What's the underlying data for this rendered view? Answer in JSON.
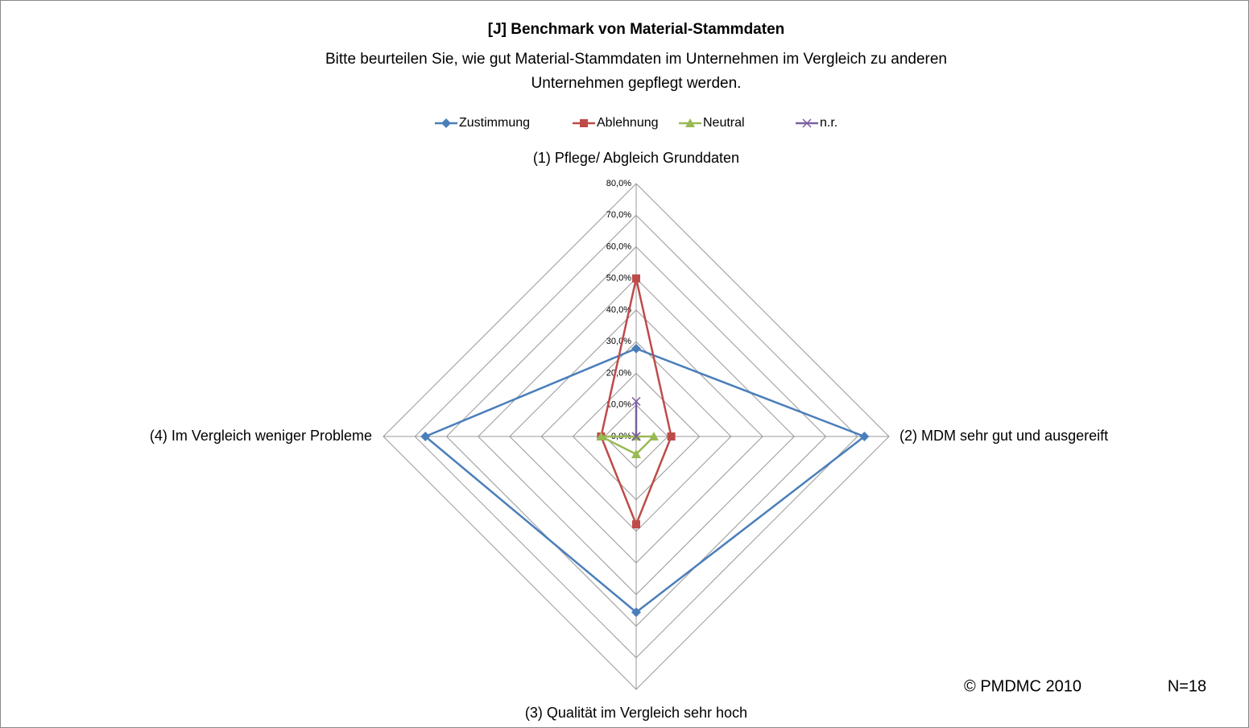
{
  "chart_data": {
    "type": "radar",
    "title": "[J] Benchmark von Material-Stammdaten",
    "subtitle": [
      "Bitte beurteilen Sie, wie gut Material-Stammdaten im Unternehmen im Vergleich zu anderen",
      "Unternehmen gepflegt werden."
    ],
    "categories": [
      "(1)  Pflege/ Abgleich Grunddaten",
      "(2) MDM sehr gut und ausgereift",
      "(3) Qualität im Vergleich sehr hoch",
      "(4) Im Vergleich weniger Probleme"
    ],
    "series": [
      {
        "name": "Zustimmung",
        "color": "#4a7ebb",
        "marker": "diamond",
        "values": [
          27.8,
          72.2,
          55.6,
          66.7
        ]
      },
      {
        "name": "Ablehnung",
        "color": "#be4b48",
        "marker": "square",
        "values": [
          50.0,
          11.1,
          27.8,
          11.1
        ]
      },
      {
        "name": "Neutral",
        "color": "#98b954",
        "marker": "triangle",
        "values": [
          0,
          5.6,
          5.6,
          11.1
        ]
      },
      {
        "name": "n.r.",
        "color": "#7d5fa0",
        "marker": "x",
        "values": [
          11.1,
          0,
          0,
          0
        ]
      }
    ],
    "ylim": [
      0,
      80
    ],
    "yticks": [
      {
        "value": 0,
        "label": "0,0%"
      },
      {
        "value": 10,
        "label": "10,0%"
      },
      {
        "value": 20,
        "label": "20,0%"
      },
      {
        "value": 30,
        "label": "30,0%"
      },
      {
        "value": 40,
        "label": "40,0%"
      },
      {
        "value": 50,
        "label": "50,0%"
      },
      {
        "value": 60,
        "label": "60,0%"
      },
      {
        "value": 70,
        "label": "70,0%"
      },
      {
        "value": 80,
        "label": "80,0%"
      }
    ],
    "grid": true,
    "legend": "top",
    "annotations": [
      "© PMDMC 2010",
      "N=18"
    ]
  }
}
